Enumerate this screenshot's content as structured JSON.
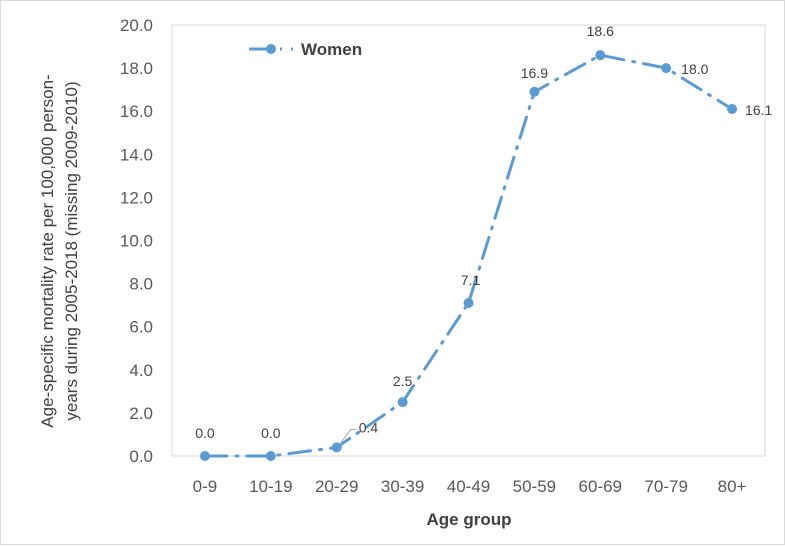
{
  "chart_data": {
    "type": "line",
    "categories": [
      "0-9",
      "10-19",
      "20-29",
      "30-39",
      "40-49",
      "50-59",
      "60-69",
      "70-79",
      "80+"
    ],
    "series": [
      {
        "name": "Women",
        "values": [
          0.0,
          0.0,
          0.4,
          2.5,
          7.1,
          16.9,
          18.6,
          18.0,
          16.1
        ],
        "labels": [
          "0.0",
          "0.0",
          "0.4",
          "2.5",
          "7.1",
          "16.9",
          "18.6",
          "18.0",
          "16.1"
        ],
        "color": "#5b9bd5"
      }
    ],
    "xlabel": "Age group",
    "ylabel_lines": [
      "Age-specific mortality rate per 100,000 person-",
      "years during 2005-2018 (missing 2009-2010)"
    ],
    "ylim": [
      0,
      20
    ],
    "yticks": [
      "0.0",
      "2.0",
      "4.0",
      "6.0",
      "8.0",
      "10.0",
      "12.0",
      "14.0",
      "16.0",
      "18.0",
      "20.0"
    ],
    "grid": false,
    "legend": "top-left"
  }
}
